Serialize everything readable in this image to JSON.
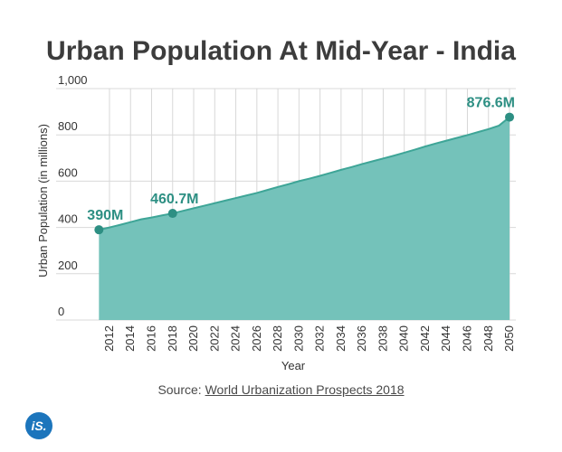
{
  "title": "Urban Population At Mid-Year - India",
  "source_prefix": "Source: ",
  "source_link": "World Urbanization Prospects 2018",
  "logo_text": "iS.",
  "colors": {
    "fill": "#74c2ba",
    "line": "#3ea597",
    "accent": "#2d8f83",
    "logo": "#1c75bc",
    "grid": "#d8d8d8"
  },
  "chart_data": {
    "type": "area",
    "title": "Urban Population At Mid-Year - India",
    "xlabel": "Year",
    "ylabel": "Urban Population (in millions)",
    "ylim": [
      0,
      1000
    ],
    "yticks": [
      0,
      200,
      400,
      600,
      800,
      1000
    ],
    "ytick_labels": [
      "0",
      "200",
      "400",
      "600",
      "800",
      "1,000"
    ],
    "xticks": [
      2012,
      2014,
      2016,
      2018,
      2020,
      2022,
      2024,
      2026,
      2028,
      2030,
      2032,
      2034,
      2036,
      2038,
      2040,
      2042,
      2044,
      2046,
      2048,
      2050
    ],
    "grid": true,
    "series": [
      {
        "x": [
          2011,
          2012,
          2013,
          2014,
          2015,
          2016,
          2017,
          2018,
          2019,
          2020,
          2021,
          2022,
          2023,
          2024,
          2025,
          2026,
          2027,
          2028,
          2029,
          2030,
          2031,
          2032,
          2033,
          2034,
          2035,
          2036,
          2037,
          2038,
          2039,
          2040,
          2041,
          2042,
          2043,
          2044,
          2045,
          2046,
          2047,
          2048,
          2049,
          2050
        ],
        "values": [
          390,
          400,
          411,
          423,
          435,
          443,
          452,
          460.7,
          472,
          483,
          494,
          505,
          516,
          527,
          538,
          549,
          562,
          575,
          587,
          600,
          611,
          623,
          636,
          649,
          661,
          674,
          686,
          698,
          710,
          723,
          736,
          750,
          763,
          775,
          787,
          799,
          812,
          825,
          840,
          876.6
        ]
      }
    ],
    "annotations": [
      {
        "x": 2011,
        "y": 390,
        "label": "390M"
      },
      {
        "x": 2018,
        "y": 460.7,
        "label": "460.7M"
      },
      {
        "x": 2050,
        "y": 876.6,
        "label": "876.6M"
      }
    ]
  }
}
